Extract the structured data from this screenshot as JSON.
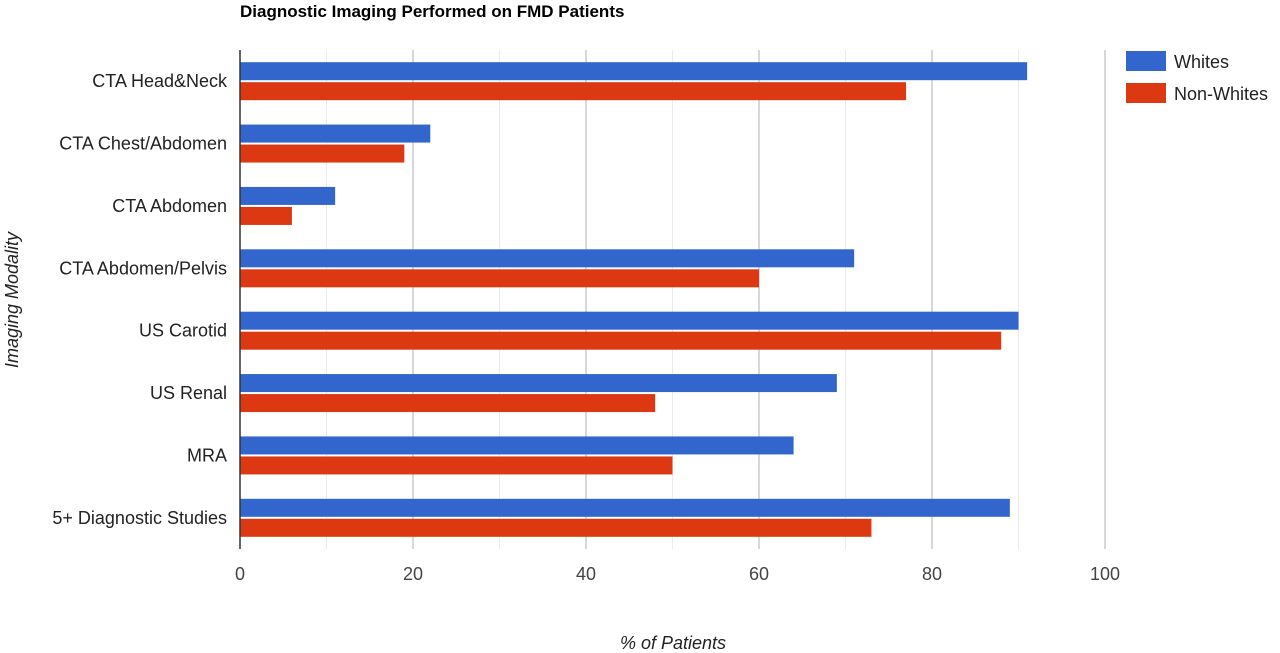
{
  "chart_data": {
    "type": "bar",
    "orientation": "horizontal",
    "title": "Diagnostic Imaging Performed on FMD Patients",
    "xlabel": "% of Patients",
    "ylabel": "Imaging Modality",
    "categories": [
      "CTA Head&Neck",
      "CTA Chest/Abdomen",
      "CTA Abdomen",
      "CTA Abdomen/Pelvis",
      "US Carotid",
      "US Renal",
      "MRA",
      "5+ Diagnostic Studies"
    ],
    "series": [
      {
        "name": "Whites",
        "color": "#3366cc",
        "values": [
          91,
          22,
          11,
          71,
          90,
          69,
          64,
          89
        ]
      },
      {
        "name": "Non-Whites",
        "color": "#dc3912",
        "values": [
          77,
          19,
          6,
          60,
          88,
          48,
          50,
          73
        ]
      }
    ],
    "xlim": [
      0,
      100
    ],
    "xticks": [
      "0",
      "20",
      "40",
      "60",
      "80",
      "100"
    ],
    "grid": true,
    "legend_position": "right"
  }
}
